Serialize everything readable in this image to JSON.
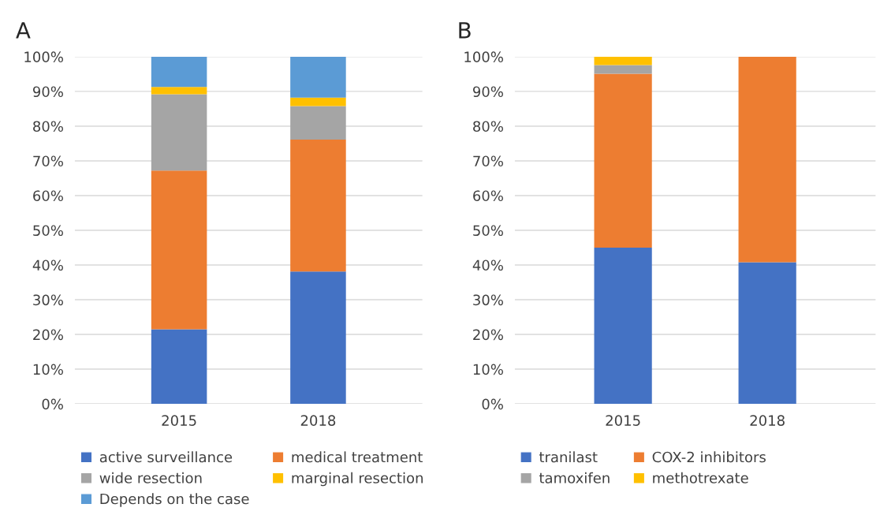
{
  "chart_data": [
    {
      "type": "bar",
      "title": "A",
      "stacked": true,
      "categories": [
        "2015",
        "2018"
      ],
      "series": [
        {
          "name": "active surveillance",
          "color": "#4472c4",
          "values": [
            21.5,
            38.1
          ]
        },
        {
          "name": "medical treatment",
          "color": "#ed7d31",
          "values": [
            45.7,
            38.0
          ]
        },
        {
          "name": "wide resection",
          "color": "#a5a5a5",
          "values": [
            22.0,
            9.7
          ]
        },
        {
          "name": "marginal resection",
          "color": "#ffc000",
          "values": [
            2.1,
            2.4
          ]
        },
        {
          "name": "Depends on the case",
          "color": "#5b9bd5",
          "values": [
            8.7,
            11.8
          ]
        }
      ],
      "ylim": [
        0,
        100
      ],
      "yticks": [
        {
          "value": 0,
          "label": "0%"
        },
        {
          "value": 10,
          "label": "10%"
        },
        {
          "value": 20,
          "label": "20%"
        },
        {
          "value": 30,
          "label": "30%"
        },
        {
          "value": 40,
          "label": "40%"
        },
        {
          "value": 50,
          "label": "50%"
        },
        {
          "value": 60,
          "label": "60%"
        },
        {
          "value": 70,
          "label": "70%"
        },
        {
          "value": 80,
          "label": "80%"
        },
        {
          "value": 90,
          "label": "90%"
        },
        {
          "value": 100,
          "label": "100%"
        }
      ],
      "grid": "y",
      "legend": "bottom"
    },
    {
      "type": "bar",
      "title": "B",
      "stacked": true,
      "categories": [
        "2015",
        "2018"
      ],
      "series": [
        {
          "name": "tranilast",
          "color": "#4472c4",
          "values": [
            45.0,
            40.8
          ]
        },
        {
          "name": "COX-2 inhibitors",
          "color": "#ed7d31",
          "values": [
            50.1,
            59.2
          ]
        },
        {
          "name": "tamoxifen",
          "color": "#a5a5a5",
          "values": [
            2.5,
            null
          ]
        },
        {
          "name": "methotrexate",
          "color": "#ffc000",
          "values": [
            2.4,
            null
          ]
        }
      ],
      "ylim": [
        0,
        100
      ],
      "yticks": [
        {
          "value": 0,
          "label": "0%"
        },
        {
          "value": 10,
          "label": "10%"
        },
        {
          "value": 20,
          "label": "20%"
        },
        {
          "value": 30,
          "label": "30%"
        },
        {
          "value": 40,
          "label": "40%"
        },
        {
          "value": 50,
          "label": "50%"
        },
        {
          "value": 60,
          "label": "60%"
        },
        {
          "value": 70,
          "label": "70%"
        },
        {
          "value": 80,
          "label": "80%"
        },
        {
          "value": 90,
          "label": "90%"
        },
        {
          "value": 100,
          "label": "100%"
        }
      ],
      "grid": "y",
      "legend": "bottom"
    }
  ]
}
